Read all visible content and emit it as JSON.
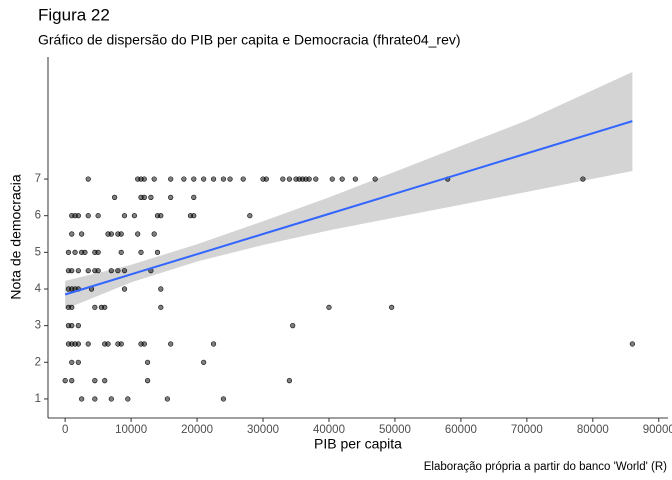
{
  "chart_data": {
    "type": "scatter",
    "title": "Figura 22",
    "subtitle": "Gráfico de dispersão do PIB per capita e Democracia (fhrate04_rev)",
    "caption": "Elaboração própria a partir do banco 'World' (R)",
    "x_label": "PIB per capita",
    "y_label": "Nota de democracia",
    "xlim": [
      -2600,
      91400
    ],
    "ylim": [
      0.48,
      10.33
    ],
    "xticks": [
      0,
      10000,
      20000,
      30000,
      40000,
      50000,
      60000,
      70000,
      80000,
      90000
    ],
    "yticks": [
      1,
      2,
      3,
      4,
      5,
      6,
      7
    ],
    "points": {
      "color": "#000000",
      "x": [
        3500,
        11000,
        11500,
        12000,
        13500,
        16000,
        18000,
        19500,
        21000,
        22500,
        24000,
        25000,
        27000,
        30000,
        30500,
        33000,
        34000,
        35000,
        35500,
        36000,
        36500,
        37000,
        38000,
        40500,
        42000,
        44000,
        47000,
        58000,
        78500,
        7500,
        11500,
        12000,
        13000,
        16000,
        19500,
        1000,
        1500,
        2000,
        3500,
        5000,
        9000,
        10500,
        14000,
        14500,
        19000,
        19500,
        28000,
        1000,
        2500,
        6500,
        7000,
        8000,
        8500,
        11000,
        13500,
        500,
        1500,
        2500,
        3000,
        4500,
        5000,
        8500,
        11500,
        14000,
        500,
        1000,
        2000,
        3500,
        4500,
        5000,
        7000,
        8000,
        9000,
        13000,
        500,
        1000,
        1500,
        2000,
        4000,
        9000,
        14500,
        500,
        1000,
        4500,
        5500,
        6000,
        14500,
        40000,
        49500,
        500,
        1000,
        2000,
        34500,
        500,
        1000,
        1500,
        2000,
        3500,
        6000,
        6500,
        8000,
        8500,
        11500,
        12000,
        16000,
        22500,
        86000,
        1000,
        2000,
        12500,
        21000,
        0,
        1000,
        4500,
        6000,
        12500,
        34000,
        2500,
        4500,
        7000,
        9500,
        15500,
        24000
      ],
      "y": [
        7,
        7,
        7,
        7,
        7,
        7,
        7,
        7,
        7,
        7,
        7,
        7,
        7,
        7,
        7,
        7,
        7,
        7,
        7,
        7,
        7,
        7,
        7,
        7,
        7,
        7,
        7,
        7,
        7,
        6.5,
        6.5,
        6.5,
        6.5,
        6.5,
        6.5,
        6,
        6,
        6,
        6,
        6,
        6,
        6,
        6,
        6,
        6,
        6,
        6,
        5.5,
        5.5,
        5.5,
        5.5,
        5.5,
        5.5,
        5.5,
        5.5,
        5,
        5,
        5,
        5,
        5,
        5,
        5,
        5,
        5,
        4.5,
        4.5,
        4.5,
        4.5,
        4.5,
        4.5,
        4.5,
        4.5,
        4.5,
        4.5,
        4,
        4,
        4,
        4,
        4,
        4,
        4,
        3.5,
        3.5,
        3.5,
        3.5,
        3.5,
        3.5,
        3.5,
        3.5,
        3,
        3,
        3,
        3,
        2.5,
        2.5,
        2.5,
        2.5,
        2.5,
        2.5,
        2.5,
        2.5,
        2.5,
        2.5,
        2.5,
        2.5,
        2.5,
        2.5,
        2,
        2,
        2,
        2,
        1.5,
        1.5,
        1.5,
        1.5,
        1.5,
        1.5,
        1,
        1,
        1,
        1,
        1,
        1
      ]
    },
    "fit": {
      "color": "#3366ff",
      "band_color": "#d4d4d4",
      "x": [
        0,
        10000,
        20000,
        30000,
        40000,
        50000,
        60000,
        70000,
        86000
      ],
      "y": [
        3.85,
        4.4,
        4.95,
        5.5,
        6.05,
        6.6,
        7.15,
        7.7,
        8.58
      ],
      "lower": [
        3.45,
        4.18,
        4.75,
        5.2,
        5.6,
        5.95,
        6.3,
        6.65,
        7.22
      ],
      "upper": [
        4.22,
        4.66,
        5.22,
        5.85,
        6.5,
        7.2,
        7.9,
        8.6,
        9.92
      ]
    }
  }
}
